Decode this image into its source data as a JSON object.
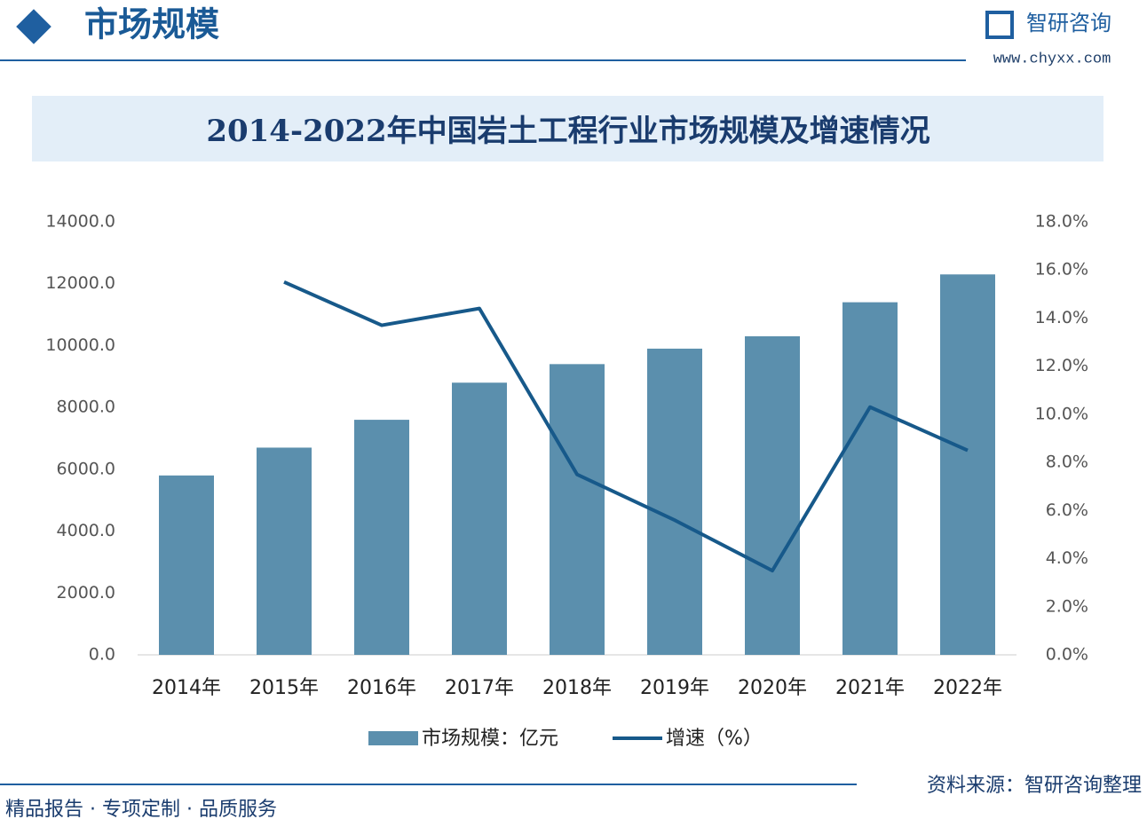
{
  "header": {
    "title": "市场规模",
    "brand": "智研咨询",
    "website": "www.chyxx.com"
  },
  "footer": {
    "slogan": "精品报告 · 专项定制 · 品质服务",
    "source": "资料来源：智研咨询整理"
  },
  "chart_data": {
    "type": "bar",
    "title": "2014-2022年中国岩土工程行业市场规模及增速情况",
    "categories": [
      "2014年",
      "2015年",
      "2016年",
      "2017年",
      "2018年",
      "2019年",
      "2020年",
      "2021年",
      "2022年"
    ],
    "series": [
      {
        "name": "市场规模：亿元",
        "type": "bar",
        "color": "#5b8fad",
        "values": [
          5800,
          6700,
          7600,
          8800,
          9400,
          9900,
          10300,
          11400,
          12300
        ]
      },
      {
        "name": "增速（%）",
        "type": "line",
        "axis": "y2",
        "color": "#17598a",
        "values": [
          null,
          15.5,
          13.7,
          14.4,
          7.5,
          5.6,
          3.5,
          10.3,
          8.5
        ]
      }
    ],
    "ylim": [
      0,
      14000
    ],
    "yticks": [
      {
        "value": 0,
        "label": "0.0"
      },
      {
        "value": 2000,
        "label": "2000.0"
      },
      {
        "value": 4000,
        "label": "4000.0"
      },
      {
        "value": 6000,
        "label": "6000.0"
      },
      {
        "value": 8000,
        "label": "8000.0"
      },
      {
        "value": 10000,
        "label": "10000.0"
      },
      {
        "value": 12000,
        "label": "12000.0"
      },
      {
        "value": 14000,
        "label": "14000.0"
      }
    ],
    "y2lim": [
      0,
      18
    ],
    "y2ticks": [
      {
        "value": 0,
        "label": "0.0%"
      },
      {
        "value": 2,
        "label": "2.0%"
      },
      {
        "value": 4,
        "label": "4.0%"
      },
      {
        "value": 6,
        "label": "6.0%"
      },
      {
        "value": 8,
        "label": "8.0%"
      },
      {
        "value": 10,
        "label": "10.0%"
      },
      {
        "value": 12,
        "label": "12.0%"
      },
      {
        "value": 14,
        "label": "14.0%"
      },
      {
        "value": 16,
        "label": "16.0%"
      },
      {
        "value": 18,
        "label": "18.0%"
      }
    ],
    "grid": false,
    "legend": "bottom"
  }
}
